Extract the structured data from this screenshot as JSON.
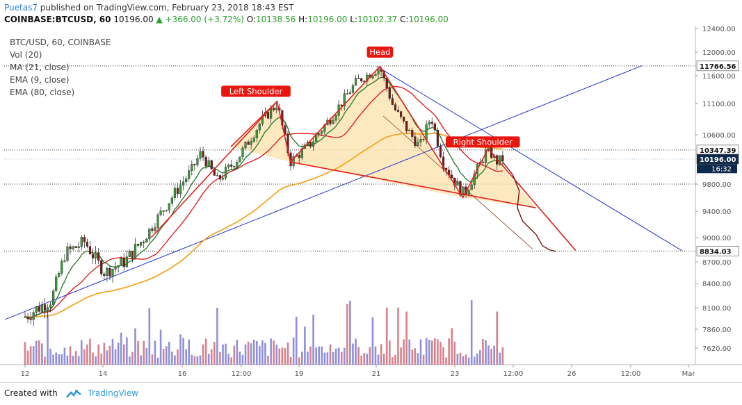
{
  "header": {
    "author": "Puetas7",
    "published_text": "published on TradingView.com, February 23, 2018 18:43 EST",
    "symbol": "COINBASE:BTCUSD, 60",
    "last": "10196.00",
    "change": "+366.00 (+3.72%)",
    "o_label": "O:",
    "o_value": "10138.56",
    "h_label": "H:",
    "h_value": "10196.00",
    "l_label": "L:",
    "l_value": "10102.37",
    "c_label": "C:",
    "c_value": "10196.00"
  },
  "legend": {
    "title": "BTC/USD, 60, COINBASE",
    "vol": "Vol (20)",
    "ma": "MA (21, close)",
    "ema9": "EMA (9, close)",
    "ema80": "EMA (80, close)"
  },
  "footer": {
    "created_with": "Created with",
    "brand": "TradingView"
  },
  "colors": {
    "up": "#2a9d2a",
    "candle_up": "#3a9a3a",
    "candle_down": "#7a1a1a",
    "pattern": "#e02020",
    "trend": "#2430d0",
    "ma": "#e02020",
    "ema9": "#2e7d32",
    "ema80": "#f5a623",
    "fill": "#fde3b0",
    "vol_up": "#7b7bd6",
    "vol_down": "#d06b78",
    "label_bg": "#e8160f",
    "price_tag": "#0d2a4a"
  },
  "chart_data": {
    "type": "candlestick",
    "y_axis": {
      "min": 7400,
      "max": 12500,
      "side": "right",
      "ticks": [
        "12400.00",
        "12000.00",
        "11600.00",
        "11100.00",
        "10600.00",
        "10196.00",
        "9800.00",
        "9400.00",
        "9000.00",
        "8700.00",
        "8400.00",
        "8100.00",
        "7860.00",
        "7620.00"
      ],
      "tick_values": [
        12400,
        12000,
        11600,
        11100,
        10600,
        10196,
        9800,
        9400,
        9000,
        8700,
        8400,
        8100,
        7860,
        7620
      ]
    },
    "x_axis": {
      "ticks": [
        "12",
        "14",
        "16",
        "12:00",
        "19",
        "21",
        "23",
        "12:00",
        "26",
        "12:00",
        "Mar"
      ],
      "tick_positions": [
        0.0,
        0.119,
        0.237,
        0.345,
        0.434,
        0.543,
        0.658,
        0.745,
        0.835,
        0.93,
        1.0
      ]
    },
    "price_levels": [
      {
        "label": "11766.56",
        "value": 11766.56
      },
      {
        "label": "10347.39",
        "value": 10347.39
      },
      {
        "label": "10196.00",
        "value": 10196.0,
        "highlight": true
      },
      {
        "label": "16:32",
        "value": 10050,
        "time": true
      },
      {
        "label": "9800.00",
        "value": 9800,
        "dotted": true
      },
      {
        "label": "8834.03",
        "value": 8834.03
      }
    ],
    "annotations": [
      {
        "text": "Left Shoulder",
        "x": 0.348,
        "y": 11320
      },
      {
        "text": "Head",
        "x": 0.535,
        "y": 12000
      },
      {
        "text": "Right Shoulder",
        "x": 0.69,
        "y": 10480
      }
    ],
    "key_prices": [
      {
        "t": 0.0,
        "p": 8000
      },
      {
        "t": 0.04,
        "p": 8200
      },
      {
        "t": 0.06,
        "p": 8800
      },
      {
        "t": 0.09,
        "p": 8950
      },
      {
        "t": 0.12,
        "p": 8550
      },
      {
        "t": 0.15,
        "p": 8700
      },
      {
        "t": 0.18,
        "p": 9000
      },
      {
        "t": 0.21,
        "p": 9450
      },
      {
        "t": 0.25,
        "p": 10000
      },
      {
        "t": 0.265,
        "p": 10300
      },
      {
        "t": 0.29,
        "p": 9850
      },
      {
        "t": 0.32,
        "p": 10200
      },
      {
        "t": 0.355,
        "p": 10800
      },
      {
        "t": 0.38,
        "p": 11100
      },
      {
        "t": 0.4,
        "p": 10150
      },
      {
        "t": 0.43,
        "p": 10450
      },
      {
        "t": 0.47,
        "p": 11000
      },
      {
        "t": 0.5,
        "p": 11500
      },
      {
        "t": 0.535,
        "p": 11740
      },
      {
        "t": 0.555,
        "p": 11050
      },
      {
        "t": 0.575,
        "p": 10700
      },
      {
        "t": 0.595,
        "p": 10400
      },
      {
        "t": 0.612,
        "p": 10900
      },
      {
        "t": 0.63,
        "p": 10150
      },
      {
        "t": 0.65,
        "p": 9800
      },
      {
        "t": 0.662,
        "p": 9650
      },
      {
        "t": 0.675,
        "p": 9900
      },
      {
        "t": 0.69,
        "p": 10200
      },
      {
        "t": 0.698,
        "p": 10370
      },
      {
        "t": 0.71,
        "p": 10150
      },
      {
        "t": 0.72,
        "p": 10196
      }
    ]
  }
}
